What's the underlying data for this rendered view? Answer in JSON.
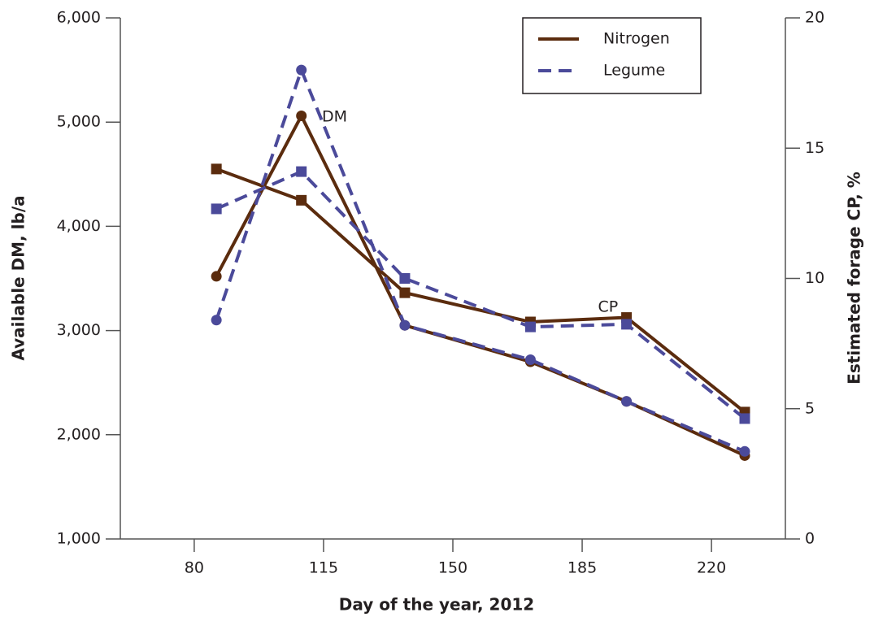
{
  "chart_data": {
    "type": "line",
    "x_label": "Day of the year, 2012",
    "y_label": "Available DM, lb/a",
    "y2_label": "Estimated forage CP, %",
    "x": [
      86,
      109,
      137,
      171,
      197,
      229
    ],
    "xlim": [
      60,
      240
    ],
    "xticks": [
      80,
      115,
      150,
      185,
      220
    ],
    "ylim": [
      1000,
      6000
    ],
    "yticks": [
      {
        "value": 1000,
        "label": "1,000"
      },
      {
        "value": 2000,
        "label": "2,000"
      },
      {
        "value": 3000,
        "label": "3,000"
      },
      {
        "value": 4000,
        "label": "4,000"
      },
      {
        "value": 5000,
        "label": "5,000"
      },
      {
        "value": 6000,
        "label": "6,000"
      }
    ],
    "y2lim": [
      0,
      20
    ],
    "y2ticks": [
      0,
      5,
      10,
      15,
      20
    ],
    "legend": "top-right",
    "series": [
      {
        "name": "Nitrogen",
        "color": "#5b2c0e",
        "dashed": false,
        "values": [
          3520,
          5060,
          3050,
          2700,
          2320,
          1800
        ],
        "y2_values": [
          14.2,
          13.0,
          9.45,
          8.33,
          8.5,
          4.87
        ]
      },
      {
        "name": "Legume",
        "color": "#4b4a9a",
        "dashed": true,
        "values": [
          3100,
          5500,
          3050,
          2720,
          2320,
          1840
        ],
        "y2_values": [
          12.67,
          14.1,
          10.0,
          8.14,
          8.24,
          4.62
        ]
      }
    ],
    "annotations": [
      {
        "text": "DM",
        "x": 118,
        "y": 5050
      },
      {
        "text": "CP",
        "x": 192,
        "y": 8.9
      }
    ]
  }
}
